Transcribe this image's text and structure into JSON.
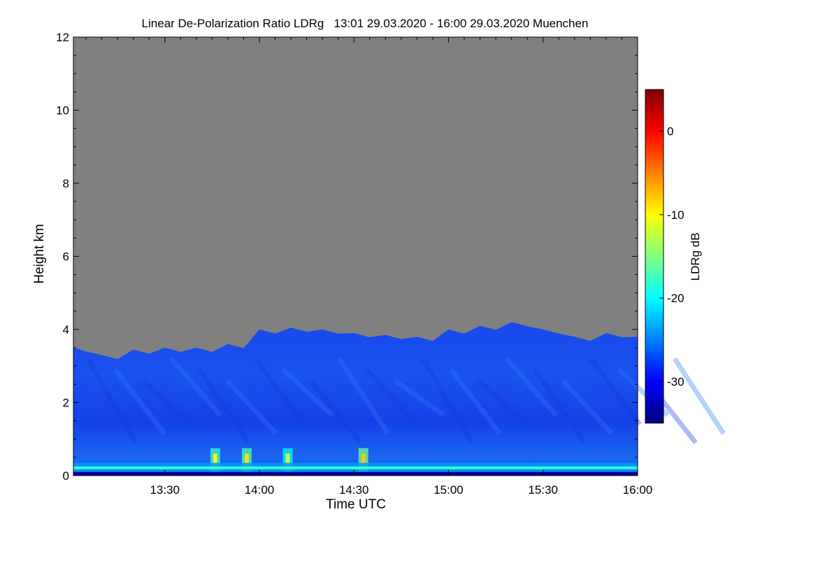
{
  "chart_data": {
    "type": "heatmap",
    "title": "Linear De-Polarization Ratio LDRg   13:01 29.03.2020 - 16:00 29.03.2020 Muenchen",
    "xlabel": "Time UTC",
    "ylabel": "Height km",
    "x_range": [
      "13:01",
      "16:00"
    ],
    "x_ticks": [
      "13:30",
      "14:00",
      "14:30",
      "15:00",
      "15:30",
      "16:00"
    ],
    "ylim": [
      0,
      12
    ],
    "y_ticks": [
      0,
      2,
      4,
      6,
      8,
      10,
      12
    ],
    "colorbar": {
      "label": "LDRg dB",
      "range": [
        -35,
        5
      ],
      "ticks": [
        0,
        -10,
        -20,
        -30
      ],
      "colormap": "jet"
    },
    "no_signal_color": "#808080",
    "cloud_top_km": [
      {
        "t": "13:01",
        "h": 3.5
      },
      {
        "t": "13:10",
        "h": 3.3
      },
      {
        "t": "13:20",
        "h": 3.45
      },
      {
        "t": "13:30",
        "h": 3.5
      },
      {
        "t": "13:40",
        "h": 3.5
      },
      {
        "t": "13:50",
        "h": 3.6
      },
      {
        "t": "14:00",
        "h": 4.0
      },
      {
        "t": "14:10",
        "h": 4.05
      },
      {
        "t": "14:20",
        "h": 4.0
      },
      {
        "t": "14:30",
        "h": 3.9
      },
      {
        "t": "14:40",
        "h": 3.85
      },
      {
        "t": "14:50",
        "h": 3.8
      },
      {
        "t": "15:00",
        "h": 4.0
      },
      {
        "t": "15:10",
        "h": 4.1
      },
      {
        "t": "15:20",
        "h": 4.2
      },
      {
        "t": "15:30",
        "h": 4.0
      },
      {
        "t": "15:40",
        "h": 3.8
      },
      {
        "t": "15:50",
        "h": 3.9
      },
      {
        "t": "16:00",
        "h": 3.8
      }
    ],
    "near_surface_layer_km": [
      0.1,
      0.35
    ],
    "surface_ldr_db": -24,
    "cloud_ldr_db": -29,
    "dust_bursts": [
      {
        "t": "13:46",
        "ldr_db": -10
      },
      {
        "t": "13:56",
        "ldr_db": -9
      },
      {
        "t": "14:09",
        "ldr_db": -12
      },
      {
        "t": "14:33",
        "ldr_db": -8
      }
    ]
  }
}
